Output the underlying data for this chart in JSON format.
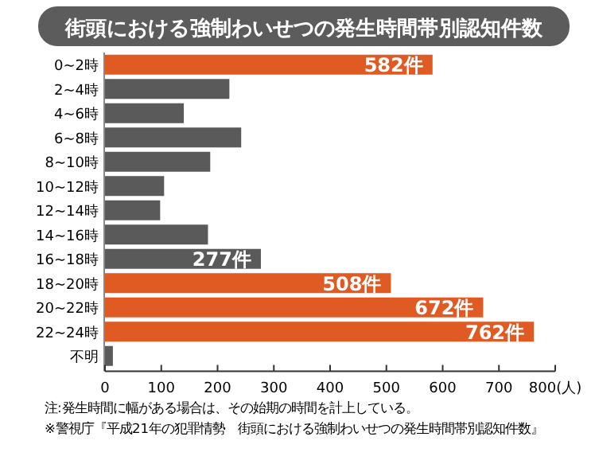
{
  "chart_data": {
    "type": "bar",
    "orientation": "horizontal",
    "title": "街頭における強制わいせつの発生時間帯別認知件数",
    "categories": [
      "0~2時",
      "2~4時",
      "4~6時",
      "6~8時",
      "8~10時",
      "10~12時",
      "12~14時",
      "14~16時",
      "16~18時",
      "18~20時",
      "20~22時",
      "22~24時",
      "不明"
    ],
    "values": [
      582,
      221,
      140,
      242,
      187,
      105,
      98,
      183,
      277,
      508,
      672,
      762,
      14
    ],
    "colors": [
      "#e05a24",
      "#5a5a5a",
      "#5a5a5a",
      "#5a5a5a",
      "#5a5a5a",
      "#5a5a5a",
      "#5a5a5a",
      "#5a5a5a",
      "#5a5a5a",
      "#e05a24",
      "#e05a24",
      "#e05a24",
      "#5a5a5a"
    ],
    "value_labels": [
      "582件",
      null,
      null,
      null,
      null,
      null,
      null,
      null,
      "277件",
      "508件",
      "672件",
      "762件",
      null
    ],
    "xlim": [
      0,
      800
    ],
    "xticks": [
      0,
      100,
      200,
      300,
      400,
      500,
      600,
      700,
      {
        "value": 800,
        "label": "800(人)"
      }
    ],
    "annotations": [
      "注:発生時間に幅がある場合は、その始期の時間を計上している。",
      "※警視庁『平成21年の犯罪情勢　街頭における強制わいせつの発生時間帯別認知件数』"
    ]
  }
}
